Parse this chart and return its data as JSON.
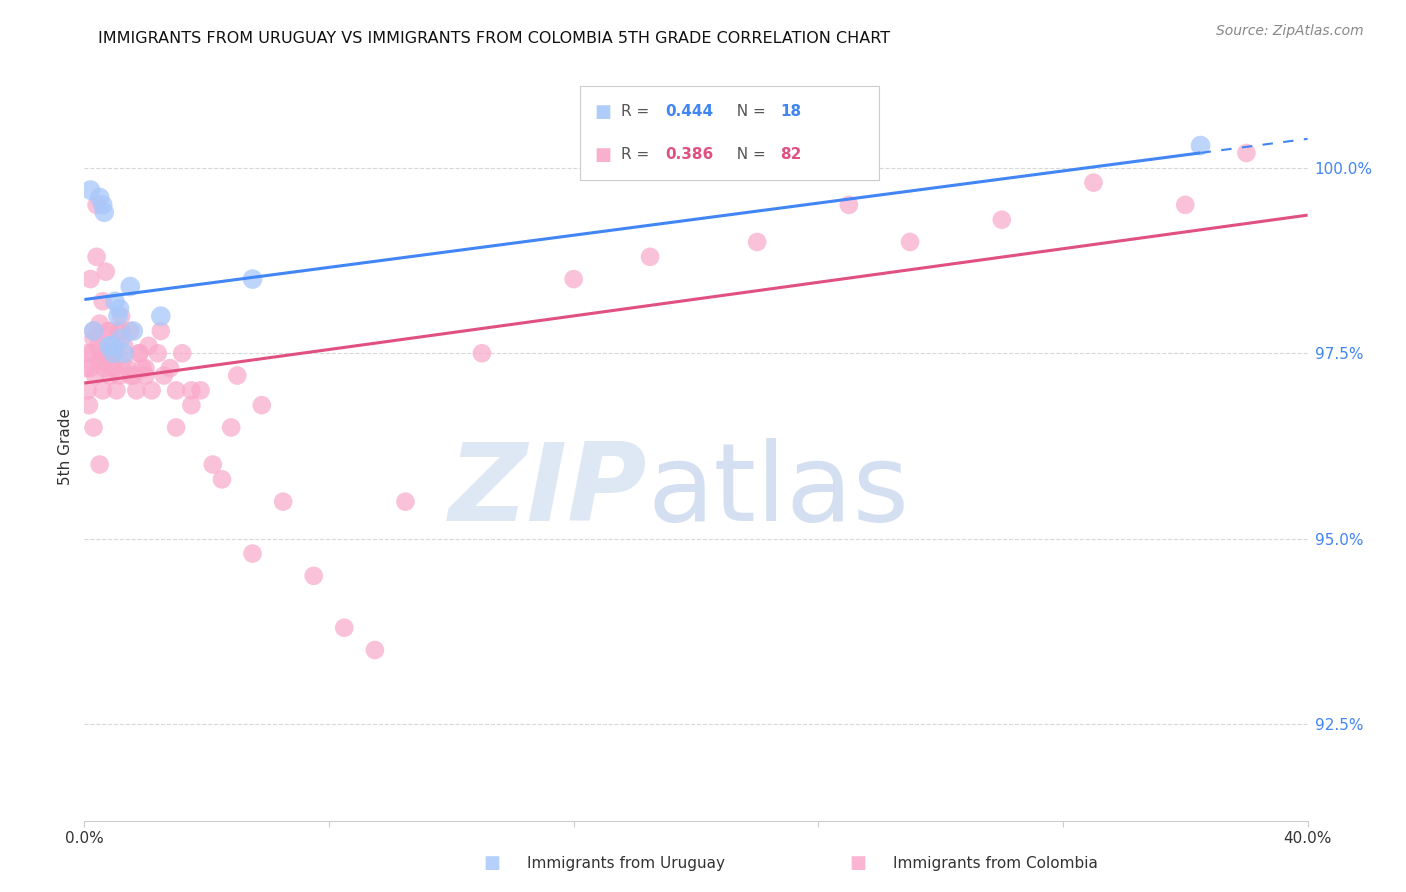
{
  "title": "IMMIGRANTS FROM URUGUAY VS IMMIGRANTS FROM COLOMBIA 5TH GRADE CORRELATION CHART",
  "source": "Source: ZipAtlas.com",
  "ylabel": "5th Grade",
  "xlim": [
    0.0,
    40.0
  ],
  "ylim": [
    91.2,
    101.3
  ],
  "yticks": [
    92.5,
    95.0,
    97.5,
    100.0
  ],
  "ytick_labels": [
    "92.5%",
    "95.0%",
    "97.5%",
    "100.0%"
  ],
  "xticks": [
    0.0,
    8.0,
    16.0,
    24.0,
    32.0,
    40.0
  ],
  "xtick_labels": [
    "0.0%",
    "",
    "",
    "",
    "",
    "40.0%"
  ],
  "r_uruguay": 0.444,
  "n_uruguay": 18,
  "r_colombia": 0.386,
  "n_colombia": 82,
  "uruguay_color": "#a8c8fa",
  "colombia_color": "#f9a8c9",
  "uruguay_line_color": "#4285f4",
  "colombia_line_color": "#e05080",
  "background_color": "#ffffff",
  "uruguay_x": [
    0.2,
    0.5,
    0.6,
    0.65,
    0.9,
    0.95,
    1.0,
    1.1,
    1.15,
    1.2,
    1.3,
    1.5,
    1.6,
    2.5,
    5.5,
    36.5,
    0.3,
    0.8
  ],
  "uruguay_y": [
    99.7,
    99.6,
    99.5,
    99.4,
    97.6,
    97.5,
    98.2,
    98.0,
    98.1,
    97.7,
    97.5,
    98.4,
    97.8,
    98.0,
    98.5,
    100.3,
    97.8,
    97.6
  ],
  "colombia_x": [
    0.05,
    0.1,
    0.15,
    0.2,
    0.25,
    0.3,
    0.35,
    0.4,
    0.45,
    0.5,
    0.55,
    0.6,
    0.65,
    0.7,
    0.75,
    0.8,
    0.85,
    0.9,
    0.95,
    1.0,
    1.05,
    1.1,
    1.15,
    1.2,
    1.25,
    1.3,
    1.4,
    1.5,
    1.6,
    1.7,
    1.8,
    1.9,
    2.0,
    2.1,
    2.2,
    2.4,
    2.6,
    2.8,
    3.0,
    3.2,
    3.5,
    3.8,
    4.2,
    4.8,
    5.5,
    6.5,
    7.5,
    8.5,
    9.5,
    10.5,
    0.1,
    0.2,
    0.3,
    0.4,
    0.5,
    0.6,
    0.7,
    0.8,
    0.9,
    1.0,
    1.2,
    1.5,
    1.8,
    2.0,
    2.5,
    3.0,
    3.5,
    4.5,
    5.0,
    5.8,
    13.0,
    16.0,
    18.5,
    22.0,
    25.0,
    27.0,
    30.0,
    33.0,
    36.0,
    38.0,
    0.3,
    0.5
  ],
  "colombia_y": [
    97.3,
    97.0,
    96.8,
    98.5,
    97.5,
    97.8,
    97.2,
    99.5,
    97.6,
    97.9,
    97.4,
    98.2,
    97.3,
    98.6,
    97.5,
    97.8,
    97.2,
    97.5,
    97.3,
    97.6,
    97.0,
    97.8,
    97.2,
    98.0,
    97.4,
    97.6,
    97.3,
    97.8,
    97.2,
    97.0,
    97.5,
    97.3,
    97.2,
    97.6,
    97.0,
    97.5,
    97.2,
    97.3,
    97.0,
    97.5,
    96.8,
    97.0,
    96.0,
    96.5,
    94.8,
    95.5,
    94.5,
    93.8,
    93.5,
    95.5,
    97.5,
    97.3,
    97.7,
    98.8,
    97.4,
    97.0,
    97.5,
    97.8,
    97.3,
    97.5,
    97.8,
    97.2,
    97.5,
    97.3,
    97.8,
    96.5,
    97.0,
    95.8,
    97.2,
    96.8,
    97.5,
    98.5,
    98.8,
    99.0,
    99.5,
    99.0,
    99.3,
    99.8,
    99.5,
    100.2,
    96.5,
    96.0
  ]
}
